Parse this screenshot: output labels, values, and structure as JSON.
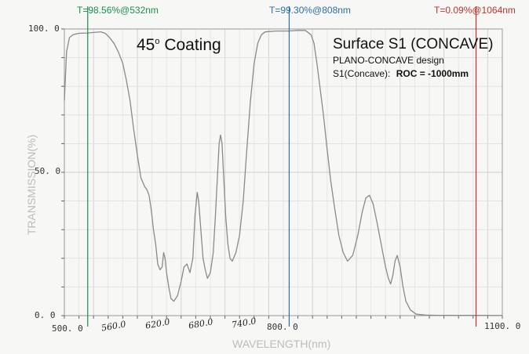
{
  "chart_data": {
    "type": "line",
    "title": "45o Coating",
    "title_base": "45",
    "title_sup": "o",
    "title_rest": " Coating",
    "info": {
      "surface": "Surface S1 (CONCAVE)",
      "design": "PLANO-CONCAVE  design",
      "roc_prefix": "S1(Concave):",
      "roc_value": "ROC = -1000mm"
    },
    "xlabel": "WAVELENGTH(nm)",
    "ylabel": "TRANSMISSION(%)",
    "xlim": [
      500,
      1100
    ],
    "ylim": [
      0,
      100
    ],
    "grid": true,
    "y_ticks": [
      {
        "value": 100,
        "label": "100. 0"
      },
      {
        "value": 50,
        "label": "50. 0"
      },
      {
        "value": 0,
        "label": "0. 0"
      }
    ],
    "x_ticks_printed": [
      {
        "value": 500,
        "label": "500. 0"
      },
      {
        "value": 800,
        "label": "800. 0"
      },
      {
        "value": 1100,
        "label": "1100. 0"
      }
    ],
    "x_ticks_handwritten": [
      {
        "value": 560,
        "label": "560.0"
      },
      {
        "value": 620,
        "label": "620.0"
      },
      {
        "value": 680,
        "label": "680.0"
      },
      {
        "value": 740,
        "label": "740.0"
      }
    ],
    "markers": [
      {
        "x": 532,
        "label": "T=98.56%@532nm",
        "color": "#1a8f4a"
      },
      {
        "x": 808,
        "label": "T=99.30%@808nm",
        "color": "#2a6fa8"
      },
      {
        "x": 1064,
        "label": "T=0.09%@1064nm",
        "color": "#c0332b"
      }
    ],
    "series": [
      {
        "color": "#8a8a8a",
        "points": [
          [
            500,
            75
          ],
          [
            503,
            92
          ],
          [
            507,
            97
          ],
          [
            512,
            98
          ],
          [
            520,
            98.5
          ],
          [
            532,
            98.6
          ],
          [
            540,
            98.8
          ],
          [
            550,
            99
          ],
          [
            556,
            98.5
          ],
          [
            562,
            97
          ],
          [
            568,
            95
          ],
          [
            574,
            92
          ],
          [
            580,
            88
          ],
          [
            585,
            82
          ],
          [
            590,
            75
          ],
          [
            595,
            65
          ],
          [
            600,
            56
          ],
          [
            605,
            48
          ],
          [
            610,
            45
          ],
          [
            613,
            44
          ],
          [
            616,
            42
          ],
          [
            619,
            37
          ],
          [
            622,
            30
          ],
          [
            625,
            25
          ],
          [
            628,
            18
          ],
          [
            631,
            16
          ],
          [
            634,
            17
          ],
          [
            636,
            22
          ],
          [
            638,
            20
          ],
          [
            640,
            15
          ],
          [
            643,
            10
          ],
          [
            646,
            6
          ],
          [
            650,
            5
          ],
          [
            655,
            7
          ],
          [
            660,
            12
          ],
          [
            664,
            17
          ],
          [
            668,
            18
          ],
          [
            672,
            15
          ],
          [
            676,
            20
          ],
          [
            679,
            35
          ],
          [
            682,
            43
          ],
          [
            684,
            40
          ],
          [
            687,
            30
          ],
          [
            690,
            20
          ],
          [
            693,
            16
          ],
          [
            696,
            13
          ],
          [
            700,
            15
          ],
          [
            704,
            22
          ],
          [
            707,
            35
          ],
          [
            710,
            50
          ],
          [
            712,
            60
          ],
          [
            714,
            63
          ],
          [
            716,
            60
          ],
          [
            718,
            50
          ],
          [
            721,
            35
          ],
          [
            724,
            25
          ],
          [
            727,
            20
          ],
          [
            730,
            19
          ],
          [
            735,
            22
          ],
          [
            740,
            28
          ],
          [
            745,
            40
          ],
          [
            750,
            58
          ],
          [
            755,
            75
          ],
          [
            760,
            88
          ],
          [
            765,
            95
          ],
          [
            770,
            98
          ],
          [
            775,
            99
          ],
          [
            790,
            99.3
          ],
          [
            808,
            99.3
          ],
          [
            820,
            99.5
          ],
          [
            830,
            99.5
          ],
          [
            838,
            98
          ],
          [
            842,
            95
          ],
          [
            846,
            88
          ],
          [
            850,
            80
          ],
          [
            855,
            70
          ],
          [
            860,
            58
          ],
          [
            865,
            47
          ],
          [
            870,
            38
          ],
          [
            876,
            28
          ],
          [
            882,
            22
          ],
          [
            888,
            19
          ],
          [
            895,
            21
          ],
          [
            902,
            28
          ],
          [
            908,
            36
          ],
          [
            913,
            41
          ],
          [
            918,
            42
          ],
          [
            923,
            39
          ],
          [
            928,
            33
          ],
          [
            934,
            25
          ],
          [
            940,
            17
          ],
          [
            944,
            13
          ],
          [
            947,
            11
          ],
          [
            950,
            14
          ],
          [
            953,
            19
          ],
          [
            956,
            21
          ],
          [
            960,
            17
          ],
          [
            964,
            10
          ],
          [
            968,
            5
          ],
          [
            974,
            2
          ],
          [
            982,
            0.5
          ],
          [
            995,
            0.2
          ],
          [
            1010,
            0.1
          ],
          [
            1064,
            0.09
          ],
          [
            1100,
            0.05
          ]
        ]
      }
    ]
  }
}
